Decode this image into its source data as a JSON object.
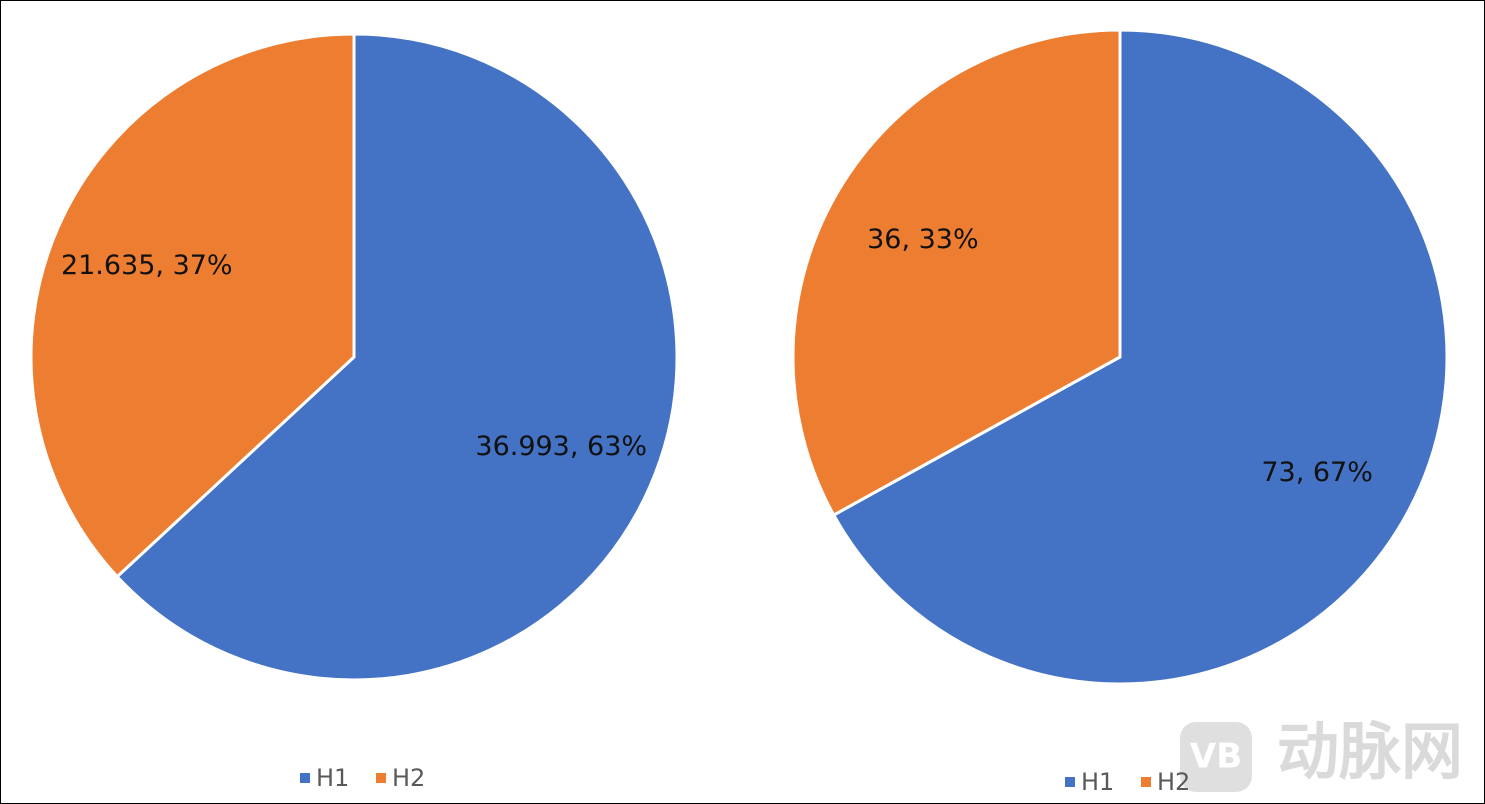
{
  "chart_data": [
    {
      "type": "pie",
      "categories": [
        "H1",
        "H2"
      ],
      "values": [
        36.993,
        21.635
      ],
      "value_labels": [
        "36.993, 63%",
        "21.635, 37%"
      ],
      "colors": [
        "#4472c4",
        "#ed7d31"
      ],
      "legend": "bottom"
    },
    {
      "type": "pie",
      "categories": [
        "H1",
        "H2"
      ],
      "values": [
        73,
        36
      ],
      "value_labels": [
        "73, 67%",
        "36, 33%"
      ],
      "colors": [
        "#4472c4",
        "#ed7d31"
      ],
      "legend": "bottom"
    }
  ],
  "watermark": {
    "logo": "VB",
    "text": "动脉网"
  }
}
